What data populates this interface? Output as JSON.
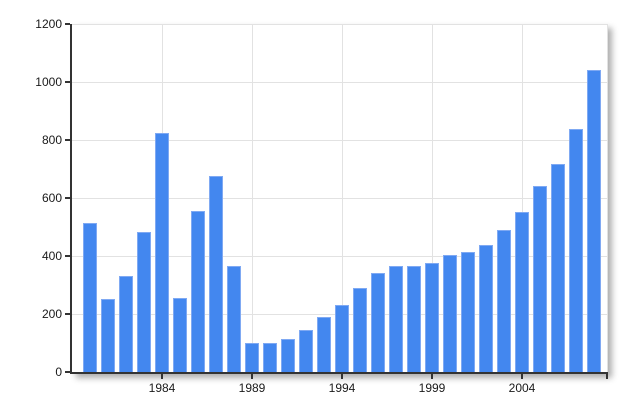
{
  "chart_data": {
    "type": "bar",
    "title": "",
    "xlabel": "",
    "ylabel": "",
    "categories": [
      "1980",
      "1981",
      "1982",
      "1983",
      "1984",
      "1985",
      "1986",
      "1987",
      "1988",
      "1989",
      "1990",
      "1991",
      "1992",
      "1993",
      "1994",
      "1995",
      "1996",
      "1997",
      "1998",
      "1999",
      "2000",
      "2001",
      "2002",
      "2003",
      "2004",
      "2005",
      "2006",
      "2007",
      "2008"
    ],
    "values": [
      515,
      250,
      330,
      483,
      825,
      255,
      555,
      675,
      365,
      100,
      100,
      113,
      145,
      190,
      230,
      290,
      340,
      365,
      365,
      375,
      403,
      413,
      438,
      490,
      552,
      640,
      718,
      838,
      1040
    ],
    "ylim": [
      0,
      1200
    ],
    "yticks": [
      0,
      200,
      400,
      600,
      800,
      1000,
      1200
    ],
    "xtick_labels": [
      "1984",
      "1989",
      "1994",
      "1999",
      "2004"
    ],
    "grid": true,
    "legend": false,
    "colors": {
      "bar_fill": "#4387ef",
      "bar_edge": "#7fa9f3",
      "grid": "#e2e2e2",
      "axis": "#333333",
      "label": "#1a1a1a"
    }
  }
}
